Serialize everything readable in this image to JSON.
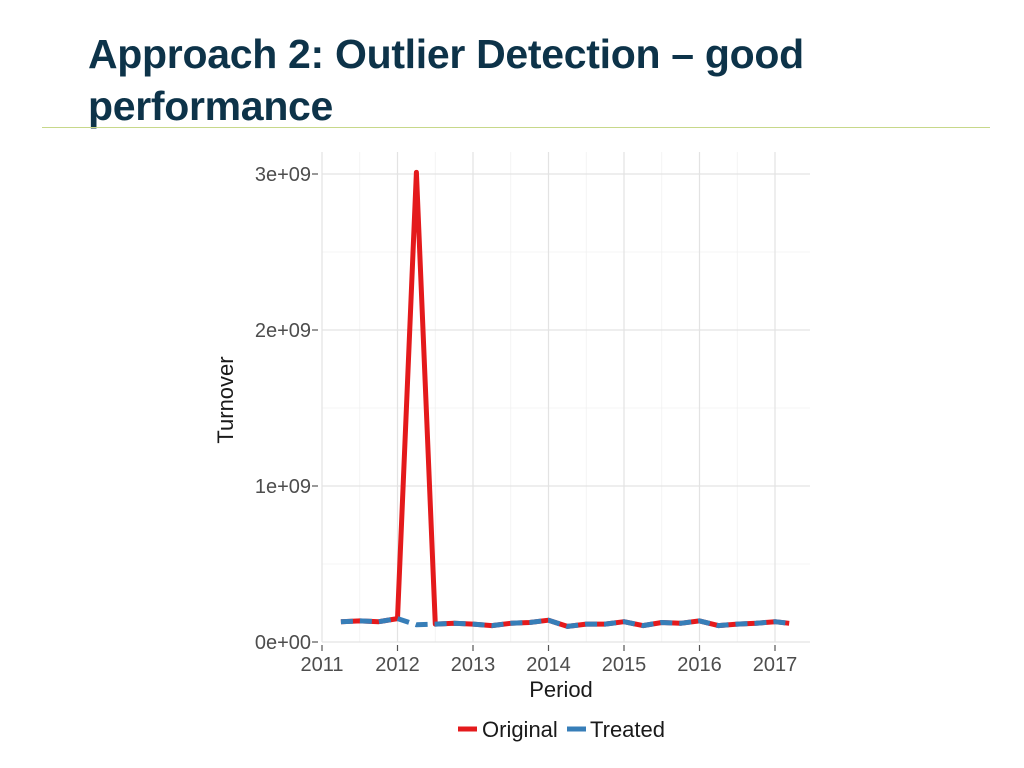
{
  "slide": {
    "title": "Approach 2: Outlier Detection – good performance",
    "title_color": "#0d3349",
    "rule_color": "#c7d88a"
  },
  "chart_data": {
    "type": "line",
    "title": "",
    "xlabel": "Period",
    "ylabel": "Turnover",
    "xlim": [
      2011,
      2017.15
    ],
    "ylim": [
      0,
      3000000000
    ],
    "x_ticks": [
      {
        "value": 2011,
        "label": "2011"
      },
      {
        "value": 2012,
        "label": "2012"
      },
      {
        "value": 2013,
        "label": "2013"
      },
      {
        "value": 2014,
        "label": "2014"
      },
      {
        "value": 2015,
        "label": "2015"
      },
      {
        "value": 2016,
        "label": "2016"
      },
      {
        "value": 2017,
        "label": "2017"
      }
    ],
    "y_ticks": [
      {
        "value": 0,
        "label": "0e+00"
      },
      {
        "value": 1000000000,
        "label": "1e+09"
      },
      {
        "value": 2000000000,
        "label": "2e+09"
      },
      {
        "value": 3000000000,
        "label": "3e+09"
      }
    ],
    "grid": true,
    "legend_position": "bottom",
    "series": [
      {
        "name": "Original",
        "color": "#e41a1c",
        "style": "solid",
        "points": [
          [
            2011.25,
            130000000
          ],
          [
            2011.5,
            135000000
          ],
          [
            2011.75,
            130000000
          ],
          [
            2012.0,
            150000000
          ],
          [
            2012.25,
            3010000000
          ],
          [
            2012.5,
            115000000
          ],
          [
            2012.75,
            120000000
          ],
          [
            2013.0,
            115000000
          ],
          [
            2013.25,
            105000000
          ],
          [
            2013.5,
            120000000
          ],
          [
            2013.75,
            125000000
          ],
          [
            2014.0,
            140000000
          ],
          [
            2014.25,
            100000000
          ],
          [
            2014.5,
            115000000
          ],
          [
            2014.75,
            115000000
          ],
          [
            2015.0,
            130000000
          ],
          [
            2015.25,
            105000000
          ],
          [
            2015.5,
            125000000
          ],
          [
            2015.75,
            120000000
          ],
          [
            2016.0,
            135000000
          ],
          [
            2016.25,
            105000000
          ],
          [
            2016.5,
            115000000
          ],
          [
            2016.75,
            120000000
          ],
          [
            2017.0,
            130000000
          ],
          [
            2017.1875,
            120000000
          ]
        ]
      },
      {
        "name": "Treated",
        "color": "#377eb8",
        "style": "dashed",
        "points": [
          [
            2011.25,
            130000000
          ],
          [
            2011.5,
            135000000
          ],
          [
            2011.75,
            130000000
          ],
          [
            2012.0,
            150000000
          ],
          [
            2012.25,
            110000000
          ],
          [
            2012.5,
            115000000
          ],
          [
            2012.75,
            120000000
          ],
          [
            2013.0,
            115000000
          ],
          [
            2013.25,
            105000000
          ],
          [
            2013.5,
            120000000
          ],
          [
            2013.75,
            125000000
          ],
          [
            2014.0,
            140000000
          ],
          [
            2014.25,
            100000000
          ],
          [
            2014.5,
            115000000
          ],
          [
            2014.75,
            115000000
          ],
          [
            2015.0,
            130000000
          ],
          [
            2015.25,
            105000000
          ],
          [
            2015.5,
            125000000
          ],
          [
            2015.75,
            120000000
          ],
          [
            2016.0,
            135000000
          ],
          [
            2016.25,
            105000000
          ],
          [
            2016.5,
            115000000
          ],
          [
            2016.75,
            120000000
          ],
          [
            2017.0,
            130000000
          ],
          [
            2017.1875,
            120000000
          ]
        ]
      }
    ]
  }
}
